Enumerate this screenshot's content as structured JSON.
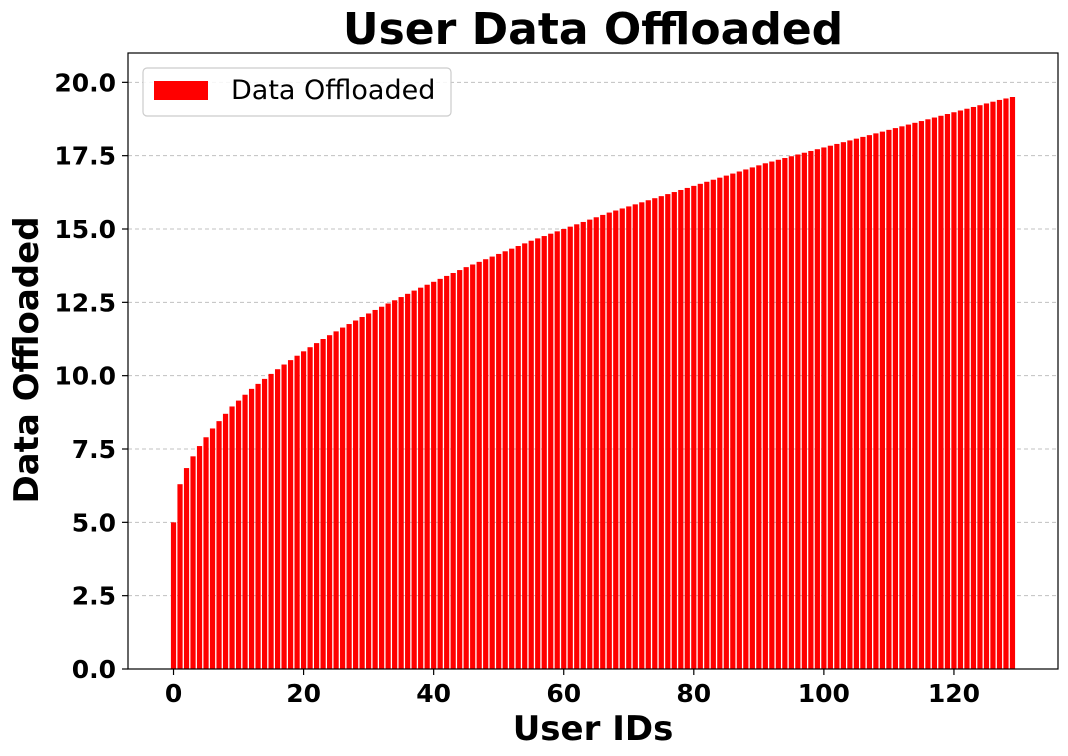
{
  "chart_data": {
    "type": "bar",
    "title": "User Data Offloaded",
    "xlabel": "User IDs",
    "ylabel": "Data Offloaded",
    "xlim": [
      -7,
      136
    ],
    "ylim": [
      0,
      21
    ],
    "xticks": [
      0,
      20,
      40,
      60,
      80,
      100,
      120
    ],
    "xtick_labels": [
      "0",
      "20",
      "40",
      "60",
      "80",
      "100",
      "120"
    ],
    "yticks": [
      0,
      2.5,
      5,
      7.5,
      10,
      12.5,
      15,
      17.5,
      20
    ],
    "ytick_labels": [
      "0.0",
      "2.5",
      "5.0",
      "7.5",
      "10.0",
      "12.5",
      "15.0",
      "17.5",
      "20.0"
    ],
    "grid": "y-dashed",
    "legend_position": "top-left",
    "series": [
      {
        "name": "Data Offloaded",
        "color": "#ff0000",
        "x": [
          0,
          1,
          2,
          3,
          4,
          5,
          6,
          7,
          8,
          9,
          10,
          11,
          12,
          13,
          14,
          15,
          16,
          17,
          18,
          19,
          20,
          21,
          22,
          23,
          24,
          25,
          26,
          27,
          28,
          29,
          30,
          31,
          32,
          33,
          34,
          35,
          36,
          37,
          38,
          39,
          40,
          41,
          42,
          43,
          44,
          45,
          46,
          47,
          48,
          49,
          50,
          51,
          52,
          53,
          54,
          55,
          56,
          57,
          58,
          59,
          60,
          61,
          62,
          63,
          64,
          65,
          66,
          67,
          68,
          69,
          70,
          71,
          72,
          73,
          74,
          75,
          76,
          77,
          78,
          79,
          80,
          81,
          82,
          83,
          84,
          85,
          86,
          87,
          88,
          89,
          90,
          91,
          92,
          93,
          94,
          95,
          96,
          97,
          98,
          99,
          100,
          101,
          102,
          103,
          104,
          105,
          106,
          107,
          108,
          109,
          110,
          111,
          112,
          113,
          114,
          115,
          116,
          117,
          118,
          119,
          120,
          121,
          122,
          123,
          124,
          125,
          126,
          127,
          128,
          129
        ],
        "values": [
          5.0,
          6.3,
          6.85,
          7.25,
          7.6,
          7.9,
          8.2,
          8.45,
          8.7,
          8.95,
          9.15,
          9.35,
          9.55,
          9.72,
          9.89,
          10.06,
          10.22,
          10.38,
          10.53,
          10.68,
          10.83,
          10.97,
          11.11,
          11.25,
          11.38,
          11.51,
          11.64,
          11.76,
          11.88,
          12.0,
          12.12,
          12.24,
          12.35,
          12.46,
          12.57,
          12.68,
          12.79,
          12.9,
          13.0,
          13.1,
          13.2,
          13.3,
          13.4,
          13.5,
          13.6,
          13.7,
          13.79,
          13.88,
          13.97,
          14.06,
          14.15,
          14.24,
          14.33,
          14.42,
          14.51,
          14.6,
          14.68,
          14.76,
          14.84,
          14.92,
          15.0,
          15.08,
          15.16,
          15.24,
          15.32,
          15.4,
          15.48,
          15.56,
          15.63,
          15.7,
          15.77,
          15.84,
          15.91,
          15.98,
          16.05,
          16.12,
          16.19,
          16.26,
          16.33,
          16.4,
          16.47,
          16.54,
          16.61,
          16.68,
          16.75,
          16.82,
          16.89,
          16.96,
          17.03,
          17.1,
          17.17,
          17.24,
          17.3,
          17.36,
          17.42,
          17.48,
          17.54,
          17.6,
          17.66,
          17.72,
          17.78,
          17.84,
          17.9,
          17.96,
          18.02,
          18.08,
          18.14,
          18.2,
          18.26,
          18.32,
          18.38,
          18.44,
          18.5,
          18.56,
          18.62,
          18.68,
          18.74,
          18.8,
          18.86,
          18.92,
          18.98,
          19.04,
          19.1,
          19.16,
          19.22,
          19.28,
          19.34,
          19.4,
          19.45,
          19.5
        ]
      }
    ]
  }
}
